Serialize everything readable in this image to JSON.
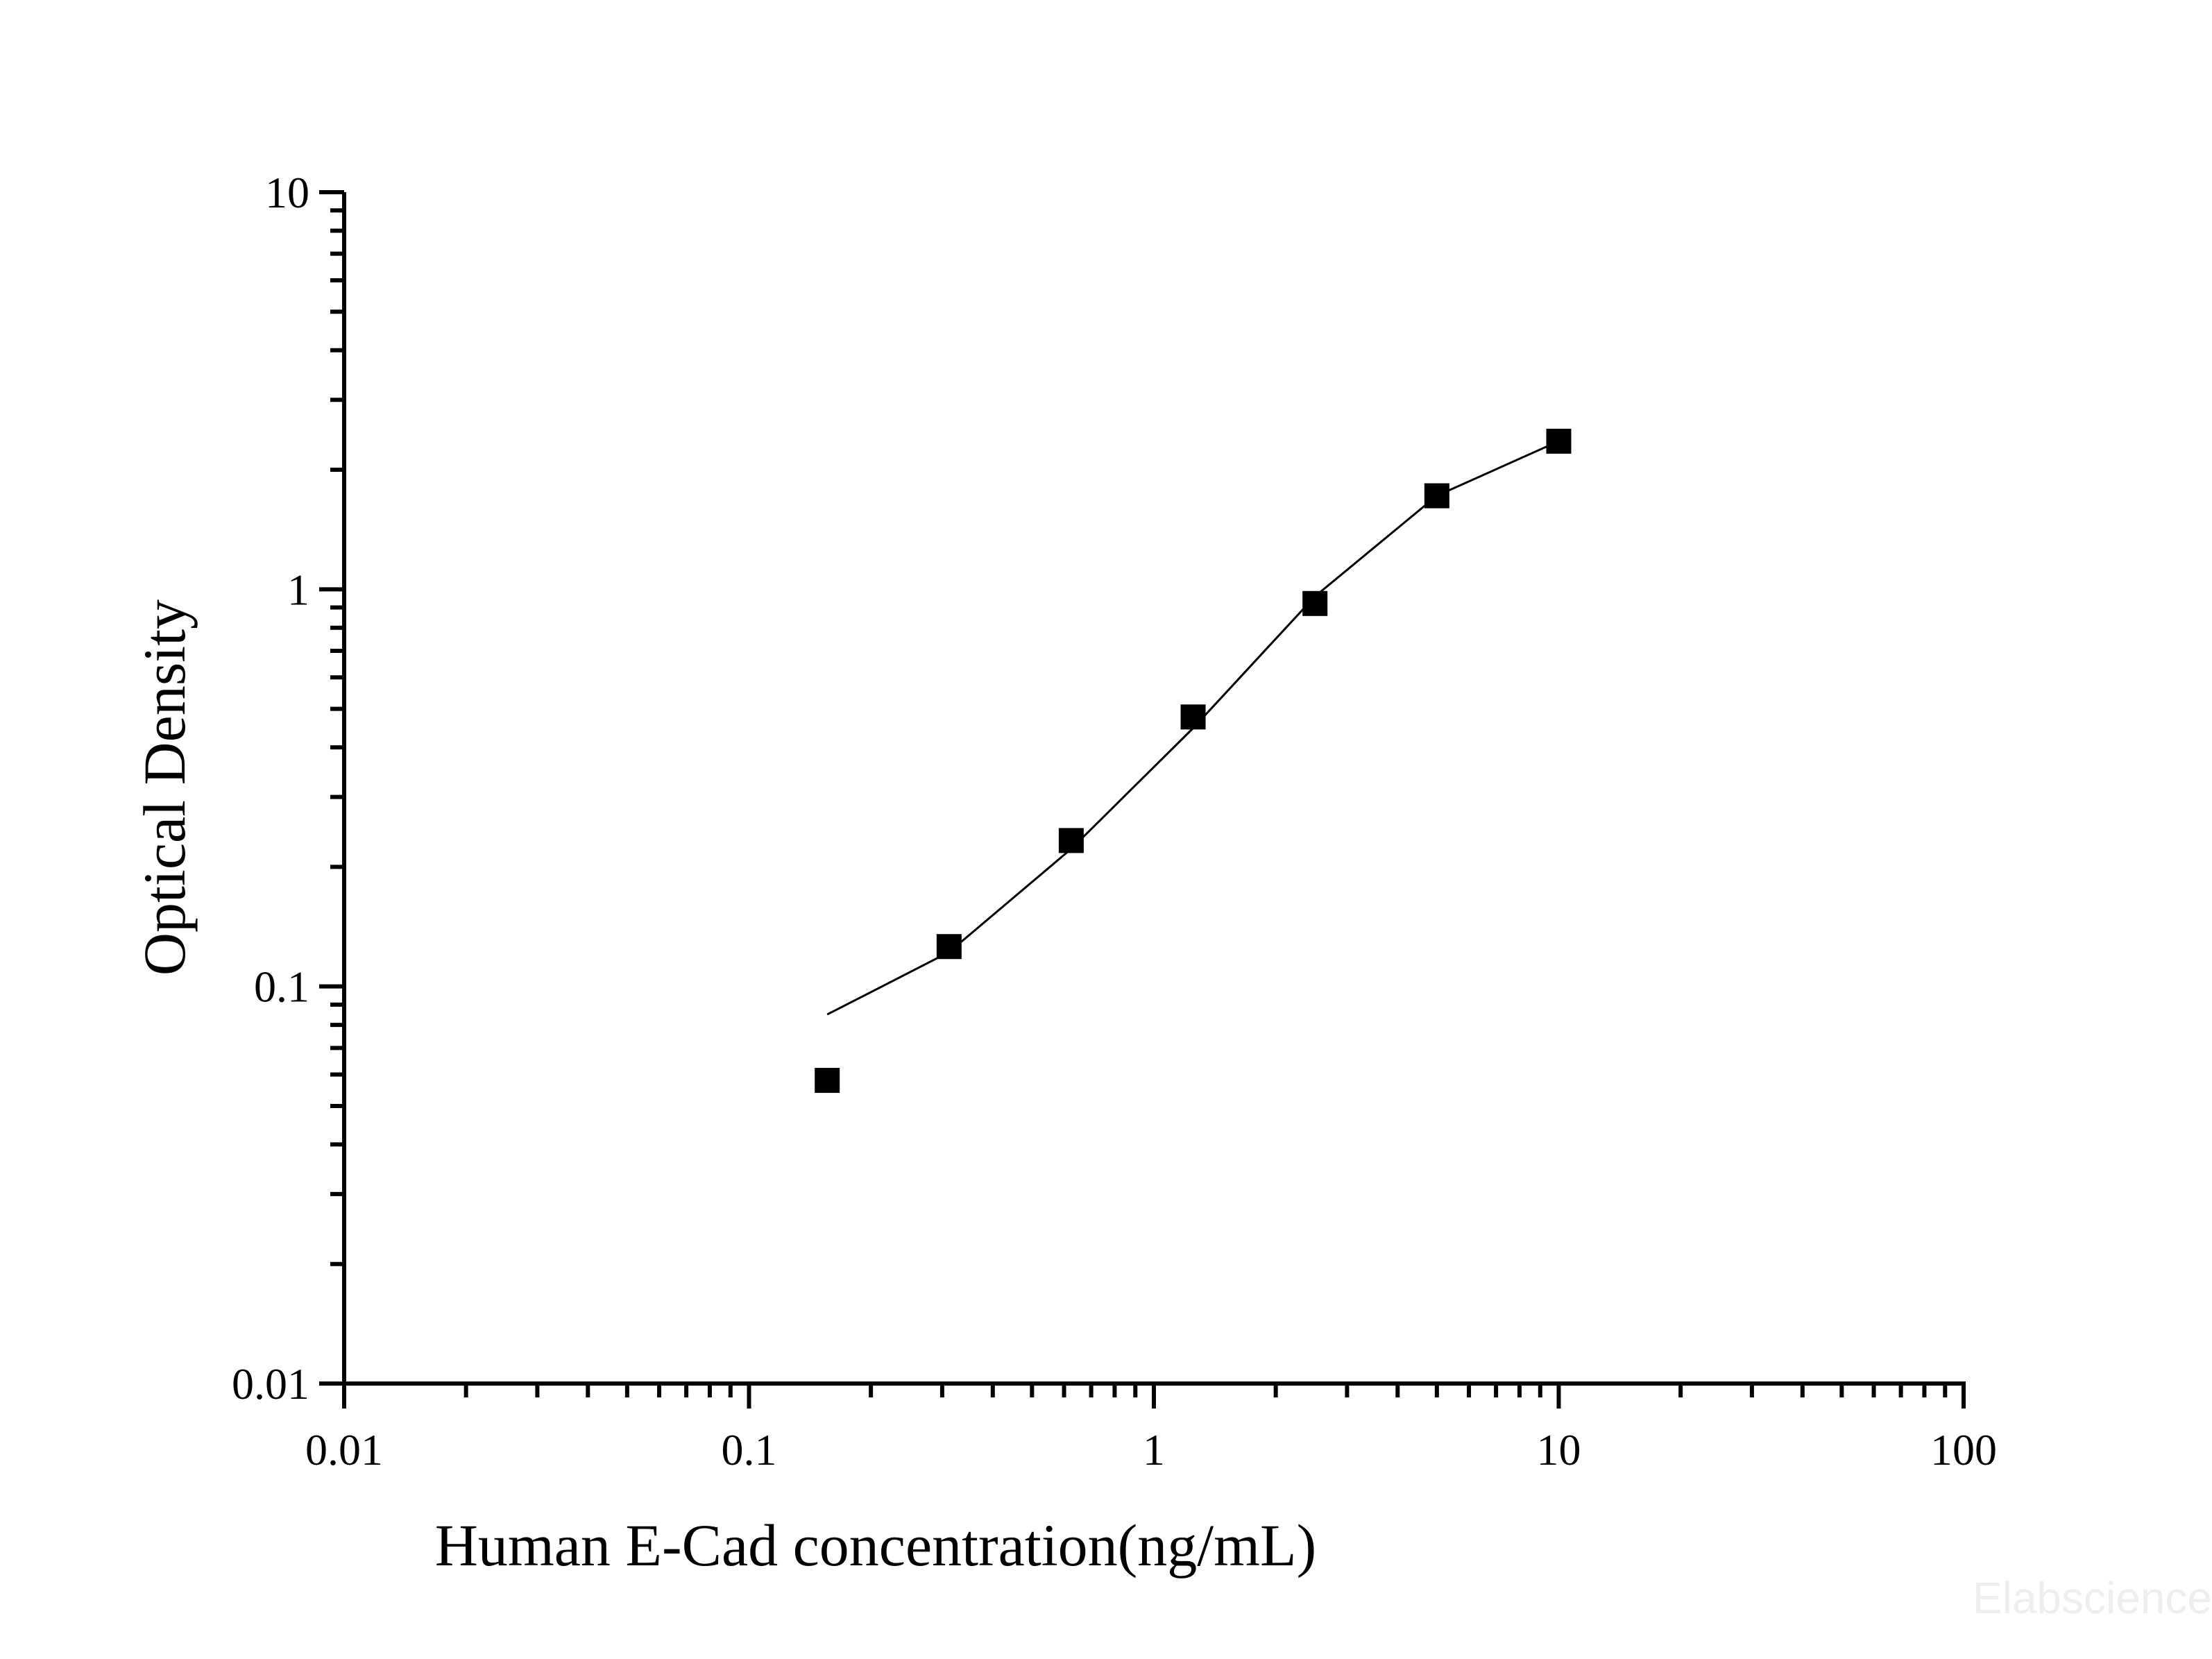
{
  "chart_data": {
    "type": "scatter",
    "xlabel": "Human E-Cad concentration(ng/mL)",
    "ylabel": "Optical Density",
    "xscale": "log",
    "yscale": "log",
    "xlim": [
      0.01,
      100
    ],
    "ylim": [
      0.01,
      10
    ],
    "xticks": [
      {
        "value": 0.01,
        "label": "0.01"
      },
      {
        "value": 0.1,
        "label": "0.1"
      },
      {
        "value": 1,
        "label": "1"
      },
      {
        "value": 10,
        "label": "10"
      },
      {
        "value": 100,
        "label": "100"
      }
    ],
    "yticks": [
      {
        "value": 0.01,
        "label": "0.01"
      },
      {
        "value": 0.1,
        "label": "0.1"
      },
      {
        "value": 1,
        "label": "1"
      },
      {
        "value": 10,
        "label": "10"
      }
    ],
    "grid": false,
    "series": [
      {
        "marker": "square",
        "color": "#000000",
        "x": [
          0.156,
          0.312,
          0.625,
          1.25,
          2.5,
          5,
          10
        ],
        "y": [
          0.058,
          0.126,
          0.233,
          0.477,
          0.921,
          1.72,
          2.36
        ]
      }
    ],
    "fit_curve": {
      "color": "#000000",
      "x": [
        0.156,
        0.312,
        0.625,
        1.25,
        2.5,
        5,
        10
      ],
      "y": [
        0.085,
        0.122,
        0.222,
        0.447,
        0.96,
        1.72,
        2.36
      ]
    }
  },
  "watermark": "Elabscience"
}
